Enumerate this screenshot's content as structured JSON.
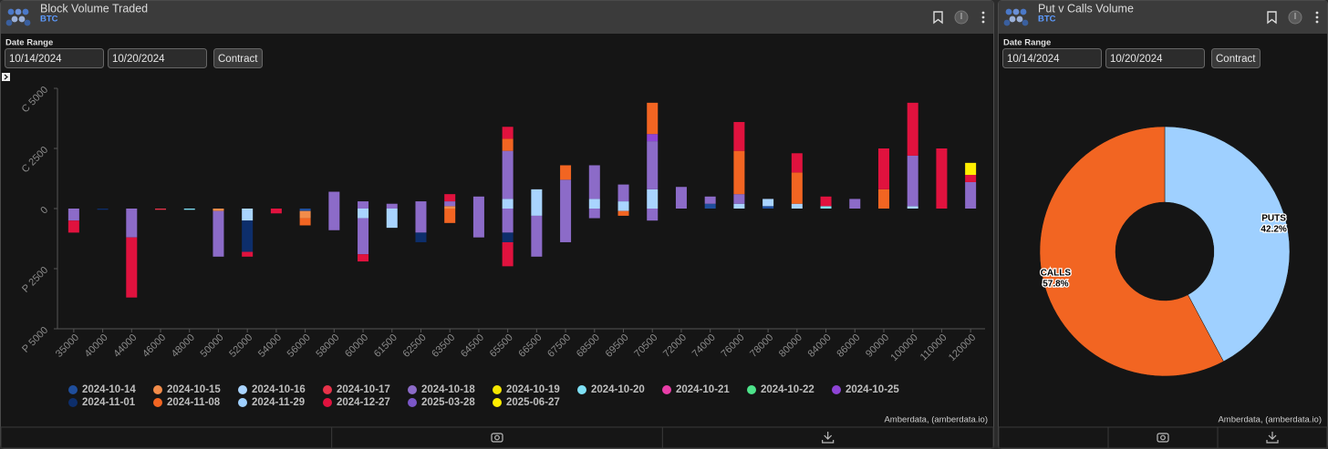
{
  "panels": [
    {
      "title": "Block Volume Traded",
      "asset": "BTC",
      "date_range_label": "Date Range",
      "start_date": "10/14/2024",
      "end_date": "10/20/2024",
      "button": "Contract",
      "credit": "Amberdata, (amberdata.io)"
    },
    {
      "title": "Put v Calls Volume",
      "asset": "BTC",
      "date_range_label": "Date Range",
      "start_date": "10/14/2024",
      "end_date": "10/20/2024",
      "button": "Contract",
      "credit": "Amberdata, (amberdata.io)"
    }
  ],
  "chart_data": [
    {
      "type": "bar",
      "categories": [
        "35000",
        "40000",
        "44000",
        "46000",
        "48000",
        "50000",
        "52000",
        "54000",
        "56000",
        "58000",
        "60000",
        "61500",
        "62500",
        "63500",
        "64500",
        "65500",
        "66500",
        "67500",
        "68500",
        "69500",
        "70500",
        "72000",
        "74000",
        "76000",
        "78000",
        "80000",
        "84000",
        "86000",
        "90000",
        "100000",
        "110000",
        "120000"
      ],
      "ylim": [
        -5000,
        5000
      ],
      "yticks": [
        {
          "value": -5000,
          "label": "P 5000"
        },
        {
          "value": -2500,
          "label": "P 2500"
        },
        0,
        {
          "value": 2500,
          "label": "C 2500"
        },
        {
          "value": 5000,
          "label": "C 5000"
        }
      ],
      "series": [
        {
          "name": "2024-10-14",
          "color": "#1f4e9c",
          "calls": [
            0,
            0,
            0,
            0,
            0,
            0,
            0,
            0,
            0,
            0,
            0,
            0,
            0,
            0,
            0,
            0,
            0,
            0,
            0,
            0,
            0,
            0,
            200,
            0,
            100,
            0,
            0,
            0,
            0,
            0,
            0,
            0
          ],
          "puts": [
            0,
            0,
            0,
            0,
            0,
            0,
            0,
            0,
            -100,
            0,
            0,
            0,
            0,
            0,
            0,
            0,
            0,
            0,
            0,
            0,
            0,
            0,
            0,
            0,
            0,
            0,
            0,
            0,
            0,
            0,
            0,
            0
          ]
        },
        {
          "name": "2024-10-15",
          "color": "#f28c4a",
          "calls": [
            0,
            0,
            0,
            0,
            0,
            0,
            0,
            0,
            0,
            0,
            0,
            0,
            0,
            100,
            0,
            0,
            0,
            0,
            0,
            0,
            0,
            0,
            0,
            0,
            0,
            0,
            0,
            0,
            0,
            0,
            0,
            0
          ],
          "puts": [
            0,
            0,
            0,
            0,
            0,
            -100,
            0,
            0,
            -300,
            0,
            0,
            0,
            0,
            0,
            0,
            0,
            0,
            0,
            0,
            0,
            0,
            0,
            0,
            0,
            0,
            0,
            0,
            0,
            0,
            0,
            0,
            0
          ]
        },
        {
          "name": "2024-10-16",
          "color": "#a9d4ff",
          "calls": [
            0,
            0,
            0,
            0,
            0,
            0,
            0,
            0,
            0,
            0,
            0,
            0,
            0,
            0,
            0,
            400,
            800,
            0,
            400,
            300,
            800,
            0,
            0,
            200,
            300,
            200,
            0,
            0,
            0,
            100,
            0,
            0
          ],
          "puts": [
            0,
            0,
            0,
            0,
            0,
            0,
            -500,
            0,
            0,
            0,
            -400,
            -800,
            0,
            0,
            0,
            0,
            -300,
            0,
            0,
            -100,
            0,
            0,
            0,
            0,
            0,
            0,
            0,
            0,
            0,
            0,
            0,
            0
          ]
        },
        {
          "name": "2024-10-17",
          "color": "#e8334a",
          "calls": [
            0,
            0,
            0,
            0,
            0,
            0,
            0,
            0,
            0,
            0,
            0,
            0,
            0,
            0,
            0,
            0,
            0,
            0,
            0,
            0,
            0,
            0,
            0,
            0,
            0,
            0,
            0,
            0,
            0,
            0,
            0,
            0
          ],
          "puts": [
            0,
            0,
            0,
            -50,
            0,
            0,
            0,
            0,
            0,
            0,
            0,
            0,
            0,
            0,
            0,
            0,
            0,
            0,
            0,
            0,
            0,
            0,
            0,
            0,
            0,
            0,
            0,
            0,
            0,
            0,
            0,
            0
          ]
        },
        {
          "name": "2024-10-18",
          "color": "#8c6bc8",
          "calls": [
            0,
            0,
            0,
            0,
            0,
            0,
            0,
            0,
            0,
            700,
            300,
            200,
            300,
            200,
            500,
            2000,
            0,
            1200,
            1400,
            700,
            2000,
            900,
            300,
            400,
            0,
            0,
            0,
            400,
            0,
            2100,
            0,
            1100
          ],
          "puts": [
            -500,
            0,
            -1200,
            0,
            0,
            -1900,
            0,
            0,
            0,
            -900,
            -1500,
            0,
            -1000,
            0,
            -1200,
            -1000,
            -1700,
            -1400,
            -400,
            0,
            -500,
            0,
            0,
            0,
            0,
            0,
            0,
            0,
            0,
            0,
            0,
            0
          ]
        },
        {
          "name": "2024-10-19",
          "color": "#f5e600",
          "calls": [
            0,
            0,
            0,
            0,
            0,
            0,
            0,
            0,
            0,
            0,
            0,
            0,
            0,
            0,
            0,
            0,
            0,
            0,
            0,
            0,
            0,
            0,
            0,
            0,
            0,
            0,
            0,
            0,
            0,
            0,
            0,
            0
          ],
          "puts": [
            0,
            0,
            0,
            0,
            0,
            0,
            0,
            0,
            0,
            0,
            0,
            0,
            0,
            0,
            0,
            0,
            0,
            0,
            0,
            0,
            0,
            0,
            0,
            0,
            0,
            0,
            0,
            0,
            0,
            0,
            0,
            0
          ]
        },
        {
          "name": "2024-10-20",
          "color": "#7ee0f5",
          "calls": [
            0,
            0,
            0,
            0,
            0,
            0,
            0,
            0,
            0,
            0,
            0,
            0,
            0,
            0,
            0,
            0,
            0,
            0,
            0,
            0,
            0,
            0,
            0,
            0,
            0,
            0,
            100,
            0,
            0,
            0,
            0,
            0
          ],
          "puts": [
            0,
            0,
            0,
            0,
            -50,
            0,
            0,
            0,
            0,
            0,
            0,
            0,
            0,
            0,
            0,
            0,
            0,
            0,
            0,
            0,
            0,
            0,
            0,
            0,
            0,
            0,
            0,
            0,
            0,
            0,
            0,
            0
          ]
        },
        {
          "name": "2024-10-21",
          "color": "#e93ea8",
          "calls": [
            0,
            0,
            0,
            0,
            0,
            0,
            0,
            0,
            0,
            0,
            0,
            0,
            0,
            0,
            0,
            0,
            0,
            0,
            0,
            0,
            0,
            0,
            0,
            0,
            0,
            0,
            0,
            0,
            0,
            0,
            0,
            0
          ],
          "puts": [
            0,
            0,
            0,
            0,
            0,
            0,
            0,
            0,
            0,
            0,
            0,
            0,
            0,
            0,
            0,
            0,
            0,
            0,
            0,
            0,
            0,
            0,
            0,
            0,
            0,
            0,
            0,
            0,
            0,
            0,
            0,
            0
          ]
        },
        {
          "name": "2024-10-22",
          "color": "#4de38a",
          "calls": [
            0,
            0,
            0,
            0,
            0,
            0,
            0,
            0,
            0,
            0,
            0,
            0,
            0,
            0,
            0,
            0,
            0,
            0,
            0,
            0,
            0,
            0,
            0,
            0,
            0,
            0,
            0,
            0,
            0,
            0,
            0,
            0
          ],
          "puts": [
            0,
            0,
            0,
            0,
            0,
            0,
            0,
            0,
            0,
            0,
            0,
            0,
            0,
            0,
            0,
            0,
            0,
            0,
            0,
            0,
            0,
            0,
            0,
            0,
            0,
            0,
            0,
            0,
            0,
            0,
            0,
            0
          ]
        },
        {
          "name": "2024-10-25",
          "color": "#8e44d6",
          "calls": [
            0,
            0,
            0,
            0,
            0,
            0,
            0,
            0,
            0,
            0,
            0,
            0,
            0,
            0,
            0,
            0,
            0,
            0,
            0,
            0,
            300,
            0,
            0,
            0,
            0,
            0,
            0,
            0,
            0,
            0,
            0,
            0
          ],
          "puts": [
            0,
            0,
            0,
            0,
            0,
            0,
            0,
            0,
            0,
            0,
            0,
            0,
            0,
            0,
            0,
            0,
            0,
            0,
            0,
            0,
            0,
            0,
            0,
            0,
            0,
            0,
            0,
            0,
            0,
            0,
            0,
            0
          ]
        },
        {
          "name": "2024-11-01",
          "color": "#0d2e6b",
          "calls": [
            0,
            0,
            0,
            0,
            0,
            0,
            0,
            0,
            0,
            0,
            0,
            0,
            0,
            0,
            0,
            0,
            0,
            0,
            0,
            0,
            0,
            0,
            0,
            0,
            0,
            0,
            0,
            0,
            0,
            0,
            0,
            0
          ],
          "puts": [
            0,
            -50,
            0,
            0,
            0,
            0,
            -1300,
            0,
            0,
            0,
            0,
            0,
            -400,
            0,
            0,
            -400,
            0,
            0,
            0,
            0,
            0,
            0,
            0,
            0,
            0,
            0,
            0,
            0,
            0,
            0,
            0,
            0
          ]
        },
        {
          "name": "2024-11-08",
          "color": "#f26522",
          "calls": [
            0,
            0,
            0,
            0,
            0,
            0,
            0,
            0,
            0,
            0,
            0,
            0,
            0,
            0,
            0,
            500,
            0,
            600,
            0,
            0,
            1300,
            0,
            0,
            1800,
            0,
            1300,
            0,
            0,
            800,
            0,
            0,
            0
          ],
          "puts": [
            0,
            0,
            0,
            0,
            0,
            0,
            0,
            0,
            -300,
            0,
            0,
            0,
            0,
            -600,
            0,
            0,
            0,
            0,
            0,
            -200,
            0,
            0,
            0,
            0,
            0,
            0,
            0,
            0,
            0,
            0,
            0,
            0
          ]
        },
        {
          "name": "2024-11-29",
          "color": "#9fd0ff",
          "calls": [
            0,
            0,
            0,
            0,
            0,
            0,
            0,
            0,
            0,
            0,
            0,
            0,
            0,
            0,
            0,
            0,
            0,
            0,
            0,
            0,
            0,
            0,
            0,
            0,
            0,
            0,
            0,
            0,
            0,
            0,
            0,
            0
          ],
          "puts": [
            0,
            0,
            0,
            0,
            0,
            0,
            0,
            0,
            0,
            0,
            0,
            0,
            0,
            0,
            0,
            0,
            0,
            0,
            0,
            0,
            0,
            0,
            0,
            0,
            0,
            0,
            0,
            0,
            0,
            0,
            0,
            0
          ]
        },
        {
          "name": "2024-12-27",
          "color": "#e0123e",
          "calls": [
            0,
            0,
            0,
            0,
            0,
            0,
            0,
            0,
            0,
            0,
            0,
            0,
            0,
            300,
            0,
            500,
            0,
            0,
            0,
            0,
            0,
            0,
            0,
            1200,
            0,
            800,
            400,
            0,
            1700,
            2200,
            2500,
            300
          ],
          "puts": [
            -500,
            0,
            -2500,
            0,
            0,
            0,
            -200,
            -200,
            0,
            0,
            -300,
            0,
            0,
            0,
            0,
            -1000,
            0,
            0,
            0,
            0,
            0,
            0,
            0,
            0,
            0,
            0,
            0,
            0,
            0,
            0,
            0,
            0
          ]
        },
        {
          "name": "2025-03-28",
          "color": "#7b57c8",
          "calls": [
            0,
            0,
            0,
            0,
            0,
            0,
            0,
            0,
            0,
            0,
            0,
            0,
            0,
            0,
            0,
            0,
            0,
            0,
            0,
            0,
            0,
            0,
            0,
            0,
            0,
            0,
            0,
            0,
            0,
            0,
            0,
            0
          ],
          "puts": [
            0,
            0,
            0,
            0,
            0,
            0,
            0,
            0,
            0,
            0,
            0,
            0,
            0,
            0,
            0,
            0,
            0,
            0,
            0,
            0,
            0,
            0,
            0,
            0,
            0,
            0,
            0,
            0,
            0,
            0,
            0,
            0
          ]
        },
        {
          "name": "2025-06-27",
          "color": "#ffee00",
          "calls": [
            0,
            0,
            0,
            0,
            0,
            0,
            0,
            0,
            0,
            0,
            0,
            0,
            0,
            0,
            0,
            0,
            0,
            0,
            0,
            0,
            0,
            0,
            0,
            0,
            0,
            0,
            0,
            0,
            0,
            0,
            0,
            500
          ],
          "puts": [
            0,
            0,
            0,
            0,
            0,
            0,
            0,
            0,
            0,
            0,
            0,
            0,
            0,
            0,
            0,
            0,
            0,
            0,
            0,
            0,
            0,
            0,
            0,
            0,
            0,
            0,
            0,
            0,
            0,
            0,
            0,
            0
          ]
        }
      ]
    },
    {
      "type": "pie",
      "categories": [
        "PUTS",
        "CALLS"
      ],
      "values": [
        42.2,
        57.8
      ],
      "value_labels": [
        "42.2%",
        "57.8%"
      ],
      "colors": [
        "#9fd0ff",
        "#f26522"
      ]
    }
  ]
}
